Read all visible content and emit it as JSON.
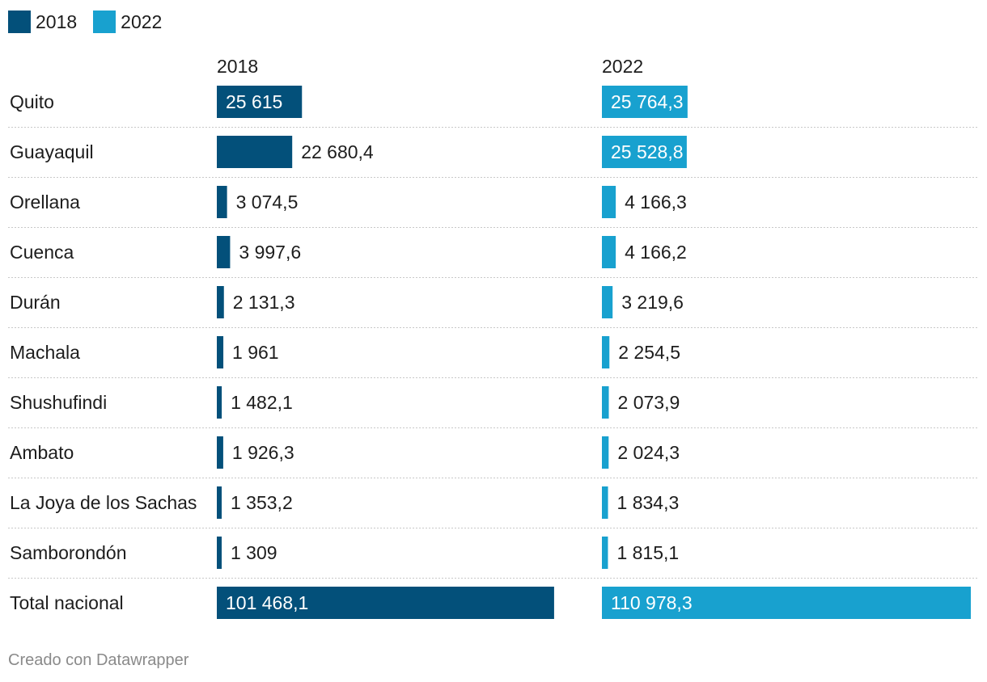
{
  "legend": [
    {
      "label": "2018",
      "color": "#03507a"
    },
    {
      "label": "2022",
      "color": "#18a1cf"
    }
  ],
  "footer": "Creado con Datawrapper",
  "chart_data": {
    "type": "bar",
    "orientation": "horizontal",
    "layout": "split-bars",
    "categories": [
      "Quito",
      "Guayaquil",
      "Orellana",
      "Cuenca",
      "Durán",
      "Machala",
      "Shushufindi",
      "Ambato",
      "La Joya de los Sachas",
      "Samborondón",
      "Total nacional"
    ],
    "series": [
      {
        "name": "2018",
        "color": "#03507a",
        "values": [
          25615,
          22680.4,
          3074.5,
          3997.6,
          2131.3,
          1961,
          1482.1,
          1926.3,
          1353.2,
          1309,
          101468.1
        ],
        "labels": [
          "25 615",
          "22 680,4",
          "3 074,5",
          "3 997,6",
          "2 131,3",
          "1 961",
          "1 482,1",
          "1 926,3",
          "1 353,2",
          "1 309",
          "101 468,1"
        ]
      },
      {
        "name": "2022",
        "color": "#18a1cf",
        "values": [
          25764.3,
          25528.8,
          4166.3,
          4166.2,
          3219.6,
          2254.5,
          2073.9,
          2024.3,
          1834.3,
          1815.1,
          110978.3
        ],
        "labels": [
          "25 764,3",
          "25 528,8",
          "4 166,3",
          "4 166,2",
          "3 219,6",
          "2 254,5",
          "2 073,9",
          "2 024,3",
          "1 834,3",
          "1 815,1",
          "110 978,3"
        ]
      }
    ],
    "xlim": [
      0,
      110978.3
    ],
    "grid": false
  }
}
